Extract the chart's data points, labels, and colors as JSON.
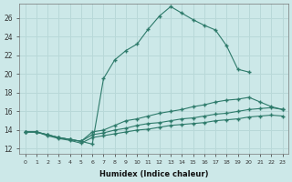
{
  "title": "",
  "xlabel": "Humidex (Indice chaleur)",
  "background_color": "#cce8e8",
  "grid_color": "#b8d8d8",
  "line_color": "#2d7a6a",
  "series": [
    {
      "x": [
        0,
        1,
        2,
        3,
        4,
        5,
        6,
        7,
        8,
        9,
        10,
        11,
        12,
        13,
        14,
        15,
        16,
        17,
        18,
        19,
        20
      ],
      "y": [
        13.8,
        13.8,
        13.5,
        13.2,
        13.0,
        12.8,
        12.5,
        19.5,
        21.5,
        22.5,
        23.2,
        24.8,
        26.2,
        27.2,
        26.5,
        25.8,
        25.2,
        24.7,
        23.0,
        20.5,
        20.2
      ]
    },
    {
      "x": [
        0,
        1,
        2,
        3,
        4,
        5,
        6,
        7,
        8,
        9,
        10,
        11,
        12,
        13,
        14,
        15,
        16,
        17,
        18,
        19,
        20,
        21,
        22,
        23
      ],
      "y": [
        13.8,
        13.8,
        13.5,
        13.2,
        13.0,
        12.8,
        13.8,
        14.0,
        14.5,
        15.0,
        15.2,
        15.5,
        15.8,
        16.0,
        16.2,
        16.5,
        16.7,
        17.0,
        17.2,
        17.3,
        17.5,
        17.0,
        16.5,
        16.2
      ]
    },
    {
      "x": [
        0,
        1,
        2,
        3,
        4,
        5,
        6,
        7,
        8,
        9,
        10,
        11,
        12,
        13,
        14,
        15,
        16,
        17,
        18,
        19,
        20,
        21,
        22,
        23
      ],
      "y": [
        13.8,
        13.8,
        13.5,
        13.2,
        13.0,
        12.8,
        13.5,
        13.7,
        14.0,
        14.2,
        14.5,
        14.7,
        14.8,
        15.0,
        15.2,
        15.3,
        15.5,
        15.7,
        15.8,
        16.0,
        16.2,
        16.3,
        16.4,
        16.2
      ]
    },
    {
      "x": [
        0,
        1,
        2,
        3,
        4,
        5,
        6,
        7,
        8,
        9,
        10,
        11,
        12,
        13,
        14,
        15,
        16,
        17,
        18,
        19,
        20,
        21,
        22,
        23
      ],
      "y": [
        13.8,
        13.8,
        13.4,
        13.1,
        12.9,
        12.6,
        13.2,
        13.4,
        13.6,
        13.8,
        14.0,
        14.1,
        14.3,
        14.5,
        14.6,
        14.7,
        14.8,
        15.0,
        15.1,
        15.2,
        15.4,
        15.5,
        15.6,
        15.5
      ]
    }
  ],
  "ylim": [
    11.5,
    27.5
  ],
  "xlim": [
    -0.5,
    23.5
  ],
  "yticks": [
    12,
    14,
    16,
    18,
    20,
    22,
    24,
    26
  ],
  "xticks": [
    0,
    1,
    2,
    3,
    4,
    5,
    6,
    7,
    8,
    9,
    10,
    11,
    12,
    13,
    14,
    15,
    16,
    17,
    18,
    19,
    20,
    21,
    22,
    23
  ],
  "xtick_labels": [
    "0",
    "1",
    "2",
    "3",
    "4",
    "5",
    "6",
    "7",
    "8",
    "9",
    "10",
    "11",
    "12",
    "13",
    "14",
    "15",
    "16",
    "17",
    "18",
    "19",
    "20",
    "21",
    "22",
    "23"
  ]
}
